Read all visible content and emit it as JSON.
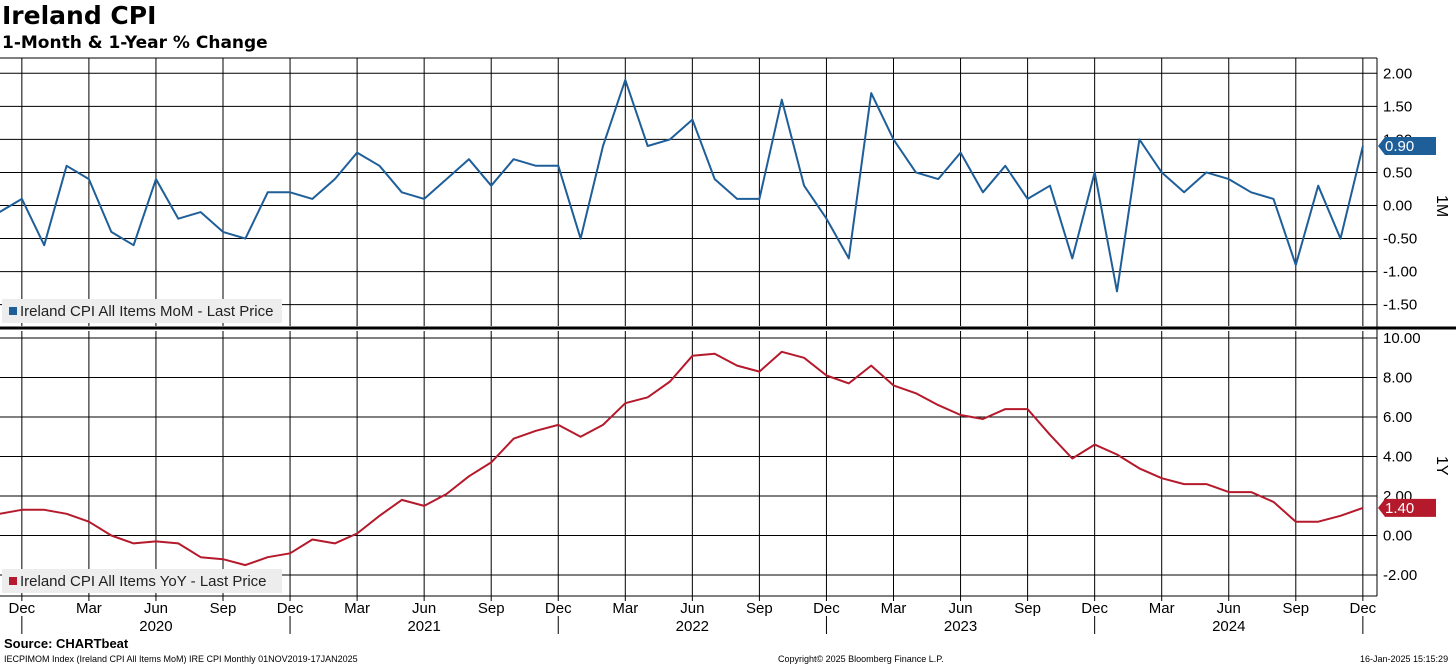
{
  "title": "Ireland CPI",
  "subtitle": "1-Month & 1-Year % Change",
  "source": "Source: CHARTbeat",
  "footer": {
    "left": "IECPIMOM Index (Ireland CPI All Items MoM) IRE CPI  Monthly 01NOV2019-17JAN2025",
    "center": "Copyright© 2025 Bloomberg Finance L.P.",
    "right": "16-Jan-2025 15:15:29"
  },
  "colors": {
    "mom": "#1f5f99",
    "yoy": "#b5192c",
    "grid": "#000000"
  },
  "chart_data": [
    {
      "type": "line",
      "panel": "top",
      "axis_label": "1M",
      "ylim": [
        -1.8,
        2.1
      ],
      "yticks": [
        "2.00",
        "1.50",
        "1.00",
        "0.50",
        "0.00",
        "-0.50",
        "-1.00",
        "-1.50"
      ],
      "ytick_values": [
        2.0,
        1.5,
        1.0,
        0.5,
        0.0,
        -0.5,
        -1.0,
        -1.5
      ],
      "grid": true,
      "legend_position": "bottom-left",
      "last_value_label": "0.90",
      "series": [
        {
          "name": "Ireland CPI All Items MoM - Last Price",
          "x": [
            "2019-11",
            "2019-12",
            "2020-01",
            "2020-02",
            "2020-03",
            "2020-04",
            "2020-05",
            "2020-06",
            "2020-07",
            "2020-08",
            "2020-09",
            "2020-10",
            "2020-11",
            "2020-12",
            "2021-01",
            "2021-02",
            "2021-03",
            "2021-04",
            "2021-05",
            "2021-06",
            "2021-07",
            "2021-08",
            "2021-09",
            "2021-10",
            "2021-11",
            "2021-12",
            "2022-01",
            "2022-02",
            "2022-03",
            "2022-04",
            "2022-05",
            "2022-06",
            "2022-07",
            "2022-08",
            "2022-09",
            "2022-10",
            "2022-11",
            "2022-12",
            "2023-01",
            "2023-02",
            "2023-03",
            "2023-04",
            "2023-05",
            "2023-06",
            "2023-07",
            "2023-08",
            "2023-09",
            "2023-10",
            "2023-11",
            "2023-12",
            "2024-01",
            "2024-02",
            "2024-03",
            "2024-04",
            "2024-05",
            "2024-06",
            "2024-07",
            "2024-08",
            "2024-09",
            "2024-10",
            "2024-11",
            "2024-12"
          ],
          "values": [
            -0.1,
            0.1,
            -0.6,
            0.6,
            0.4,
            -0.4,
            -0.6,
            0.4,
            -0.2,
            -0.1,
            -0.4,
            -0.5,
            0.2,
            0.2,
            0.1,
            0.4,
            0.8,
            0.6,
            0.2,
            0.1,
            0.4,
            0.7,
            0.3,
            0.7,
            0.6,
            0.6,
            -0.5,
            0.9,
            1.9,
            0.9,
            1.0,
            1.3,
            0.4,
            0.1,
            0.1,
            1.6,
            0.3,
            -0.2,
            -0.8,
            1.7,
            1.0,
            0.5,
            0.4,
            0.8,
            0.2,
            0.6,
            0.1,
            0.3,
            -0.8,
            0.5,
            -1.3,
            1.0,
            0.5,
            0.2,
            0.5,
            0.4,
            0.2,
            0.1,
            -0.9,
            0.3,
            -0.5,
            0.9
          ]
        }
      ]
    },
    {
      "type": "line",
      "panel": "bottom",
      "axis_label": "1Y",
      "ylim": [
        -3.0,
        10.3
      ],
      "yticks": [
        "10.00",
        "8.00",
        "6.00",
        "4.00",
        "2.00",
        "0.00",
        "-2.00"
      ],
      "ytick_values": [
        10,
        8,
        6,
        4,
        2,
        0,
        -2
      ],
      "grid": true,
      "legend_position": "bottom-left",
      "last_value_label": "1.40",
      "x_ticks": [
        "Dec",
        "Mar",
        "Jun",
        "Sep",
        "Dec",
        "Mar",
        "Jun",
        "Sep",
        "Dec",
        "Mar",
        "Jun",
        "Sep",
        "Dec",
        "Mar",
        "Jun",
        "Sep",
        "Dec",
        "Mar",
        "Jun",
        "Sep",
        "Dec"
      ],
      "x_years": [
        "2020",
        "2021",
        "2022",
        "2023",
        "2024"
      ],
      "series": [
        {
          "name": "Ireland CPI All Items YoY - Last Price",
          "x": [
            "2019-11",
            "2019-12",
            "2020-01",
            "2020-02",
            "2020-03",
            "2020-04",
            "2020-05",
            "2020-06",
            "2020-07",
            "2020-08",
            "2020-09",
            "2020-10",
            "2020-11",
            "2020-12",
            "2021-01",
            "2021-02",
            "2021-03",
            "2021-04",
            "2021-05",
            "2021-06",
            "2021-07",
            "2021-08",
            "2021-09",
            "2021-10",
            "2021-11",
            "2021-12",
            "2022-01",
            "2022-02",
            "2022-03",
            "2022-04",
            "2022-05",
            "2022-06",
            "2022-07",
            "2022-08",
            "2022-09",
            "2022-10",
            "2022-11",
            "2022-12",
            "2023-01",
            "2023-02",
            "2023-03",
            "2023-04",
            "2023-05",
            "2023-06",
            "2023-07",
            "2023-08",
            "2023-09",
            "2023-10",
            "2023-11",
            "2023-12",
            "2024-01",
            "2024-02",
            "2024-03",
            "2024-04",
            "2024-05",
            "2024-06",
            "2024-07",
            "2024-08",
            "2024-09",
            "2024-10",
            "2024-11",
            "2024-12"
          ],
          "values": [
            1.1,
            1.3,
            1.3,
            1.1,
            0.7,
            0.0,
            -0.4,
            -0.3,
            -0.4,
            -1.1,
            -1.2,
            -1.5,
            -1.1,
            -0.9,
            -0.2,
            -0.4,
            0.1,
            1.0,
            1.8,
            1.5,
            2.1,
            3.0,
            3.7,
            4.9,
            5.3,
            5.6,
            5.0,
            5.6,
            6.7,
            7.0,
            7.8,
            9.1,
            9.2,
            8.6,
            8.3,
            9.3,
            9.0,
            8.1,
            7.7,
            8.6,
            7.6,
            7.2,
            6.6,
            6.1,
            5.9,
            6.4,
            6.4,
            5.1,
            3.9,
            4.6,
            4.1,
            3.4,
            2.9,
            2.6,
            2.6,
            2.2,
            2.2,
            1.7,
            0.7,
            0.7,
            1.0,
            1.4
          ]
        }
      ]
    }
  ]
}
